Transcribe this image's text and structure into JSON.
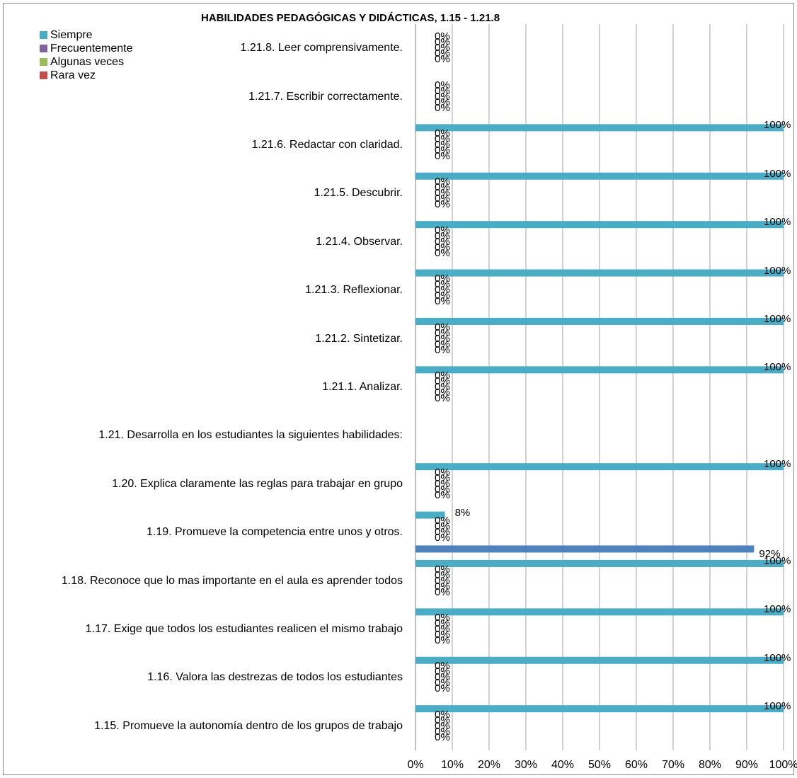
{
  "chart_data": {
    "type": "bar",
    "orientation": "horizontal",
    "title": "HABILIDADES PEDAGÓGICAS Y DIDÁCTICAS, 1.15 - 1.21.8",
    "categories": [
      "1.15.   Promueve la autonomía dentro de los grupos de trabajo",
      "1.16.   Valora las destrezas de todos los estudiantes",
      "1.17.   Exige que todos los estudiantes realicen el mismo trabajo",
      "1.18.   Reconoce que lo mas importante en el aula es aprender todos",
      "1.19.   Promueve la competencia entre unos y otros.",
      "1.20.   Explica claramente las reglas para trabajar en grupo",
      "1.21.  Desarrolla en los estudiantes la  siguientes habilidades:",
      "1.21.1.   Analizar.",
      "1.21.2.   Sintetizar.",
      "1.21.3.   Reflexionar.",
      "1.21.4.   Observar.",
      "1.21.5.   Descubrir.",
      "1.21.6.   Redactar con claridad.",
      "1.21.7.   Escribir correctamente.",
      "1.21.8.   Leer comprensivamente."
    ],
    "series": [
      {
        "name": "Siempre",
        "color": "#4bacc6",
        "values": [
          100,
          100,
          100,
          100,
          8,
          100,
          null,
          100,
          100,
          100,
          100,
          100,
          100,
          0,
          0
        ]
      },
      {
        "name": "Frecuentemente",
        "color": "#8064a2",
        "values": [
          0,
          0,
          0,
          0,
          0,
          0,
          null,
          0,
          0,
          0,
          0,
          0,
          0,
          0,
          0
        ]
      },
      {
        "name": "Algunas veces",
        "color": "#9bbb59",
        "values": [
          0,
          0,
          0,
          0,
          0,
          0,
          null,
          0,
          0,
          0,
          0,
          0,
          0,
          0,
          0
        ]
      },
      {
        "name": "Rara vez",
        "color": "#c0504d",
        "values": [
          0,
          0,
          0,
          0,
          0,
          0,
          null,
          0,
          0,
          0,
          0,
          0,
          0,
          0,
          0
        ]
      },
      {
        "name": "",
        "color": "#4f81bd",
        "values": [
          0,
          0,
          0,
          0,
          92,
          0,
          null,
          0,
          0,
          0,
          0,
          0,
          0,
          0,
          0
        ]
      }
    ],
    "value_labels": {
      "hundred": "100%",
      "eight": "8%",
      "ninety_two": "92%",
      "zero": "0%"
    },
    "xticks": [
      "0%",
      "10%",
      "20%",
      "30%",
      "40%",
      "50%",
      "60%",
      "70%",
      "80%",
      "90%",
      "100%"
    ],
    "xlim": [
      0,
      100
    ],
    "grid": true,
    "legend": "top-left"
  }
}
